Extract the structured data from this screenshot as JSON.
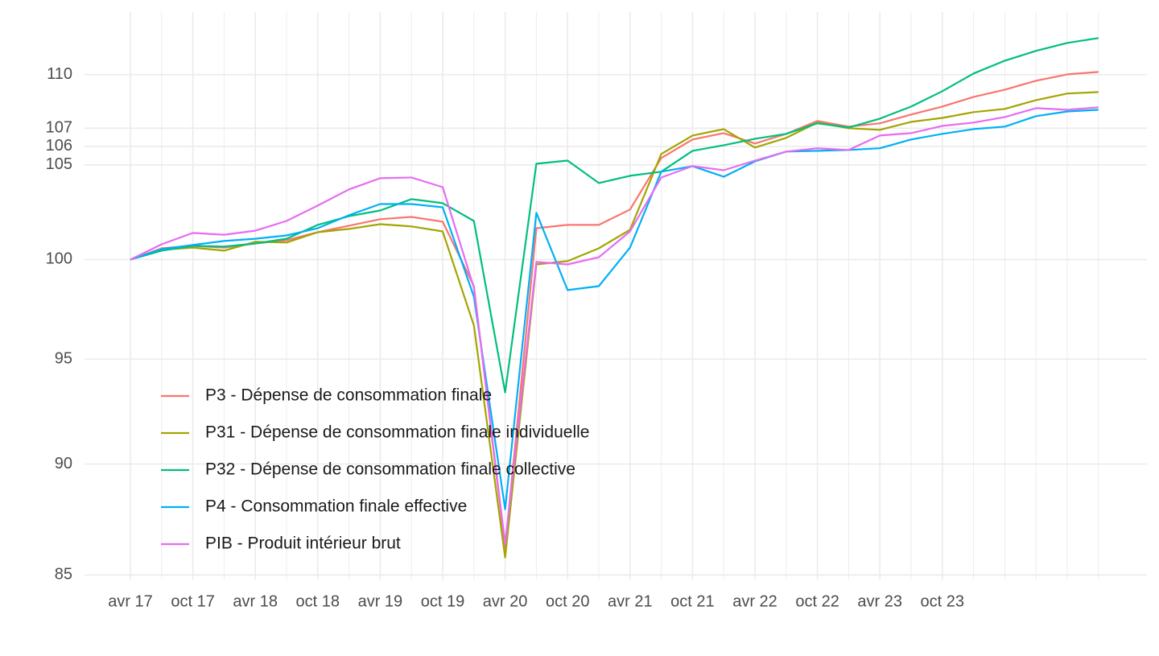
{
  "chart_data": {
    "type": "line",
    "log_y": true,
    "grid": true,
    "legend_position": "bottom-left",
    "categories": [
      "avr 17",
      null,
      "oct 17",
      null,
      "avr 18",
      null,
      "oct 18",
      null,
      "avr 19",
      null,
      "oct 19",
      null,
      "avr 20",
      null,
      "oct 20",
      null,
      "avr 21",
      null,
      "oct 21",
      null,
      "avr 22",
      null,
      "oct 22",
      null,
      "avr 23",
      null,
      "oct 23",
      null,
      null,
      null,
      null,
      null
    ],
    "ylim": [
      84.8,
      113.6
    ],
    "yticks": [
      85,
      90,
      95,
      100,
      105,
      106,
      107,
      110
    ],
    "series": [
      {
        "name": "P3 - Dépense de consommation finale",
        "color": "#F8766D",
        "values": [
          100,
          100.58,
          100.71,
          100.62,
          100.83,
          101.0,
          101.42,
          101.76,
          102.1,
          102.22,
          101.97,
          98.64,
          86.2,
          101.63,
          101.8,
          101.8,
          102.61,
          105.37,
          106.38,
          106.73,
          106.16,
          106.69,
          107.4,
          107.09,
          107.27,
          107.76,
          108.2,
          108.74,
          109.15,
          109.65,
          110.01,
          110.15
        ]
      },
      {
        "name": "P31 - Dépense de consommation finale individuelle",
        "color": "#A3A500",
        "values": [
          100,
          100.5,
          100.62,
          100.46,
          100.92,
          100.88,
          101.42,
          101.59,
          101.84,
          101.72,
          101.46,
          96.66,
          85.77,
          99.75,
          99.92,
          100.58,
          101.55,
          105.59,
          106.6,
          106.95,
          105.94,
          106.47,
          107.31,
          107.0,
          106.91,
          107.35,
          107.57,
          107.89,
          108.07,
          108.56,
          108.93,
          109.01
        ]
      },
      {
        "name": "P32 - Dépense de consommation finale collective",
        "color": "#00BF7D",
        "values": [
          100,
          100.46,
          100.71,
          100.67,
          100.83,
          101.08,
          101.8,
          102.26,
          102.56,
          103.16,
          102.95,
          102.01,
          93.38,
          105.06,
          105.23,
          104.02,
          104.41,
          104.63,
          105.76,
          106.07,
          106.42,
          106.69,
          107.27,
          107.04,
          107.53,
          108.2,
          109.06,
          110.06,
          110.79,
          111.35,
          111.81,
          112.09
        ]
      },
      {
        "name": "P4 - Consommation finale effective",
        "color": "#00B0F6",
        "values": [
          100,
          100.54,
          100.75,
          100.96,
          101.08,
          101.25,
          101.63,
          102.31,
          102.9,
          102.9,
          102.73,
          98.11,
          87.93,
          102.44,
          98.44,
          98.64,
          100.62,
          104.63,
          104.93,
          104.36,
          105.19,
          105.72,
          105.76,
          105.81,
          105.9,
          106.38,
          106.69,
          106.95,
          107.09,
          107.67,
          107.93,
          108.02
        ]
      },
      {
        "name": "PIB - Produit intérieur brut",
        "color": "#E76BF3",
        "values": [
          100,
          100.79,
          101.38,
          101.29,
          101.5,
          102.01,
          102.82,
          103.68,
          104.28,
          104.32,
          103.8,
          98.56,
          86.37,
          99.88,
          99.75,
          100.12,
          101.46,
          104.32,
          104.93,
          104.71,
          105.23,
          105.72,
          105.9,
          105.81,
          106.6,
          106.73,
          107.13,
          107.31,
          107.62,
          108.11,
          108.02,
          108.16
        ]
      }
    ]
  }
}
